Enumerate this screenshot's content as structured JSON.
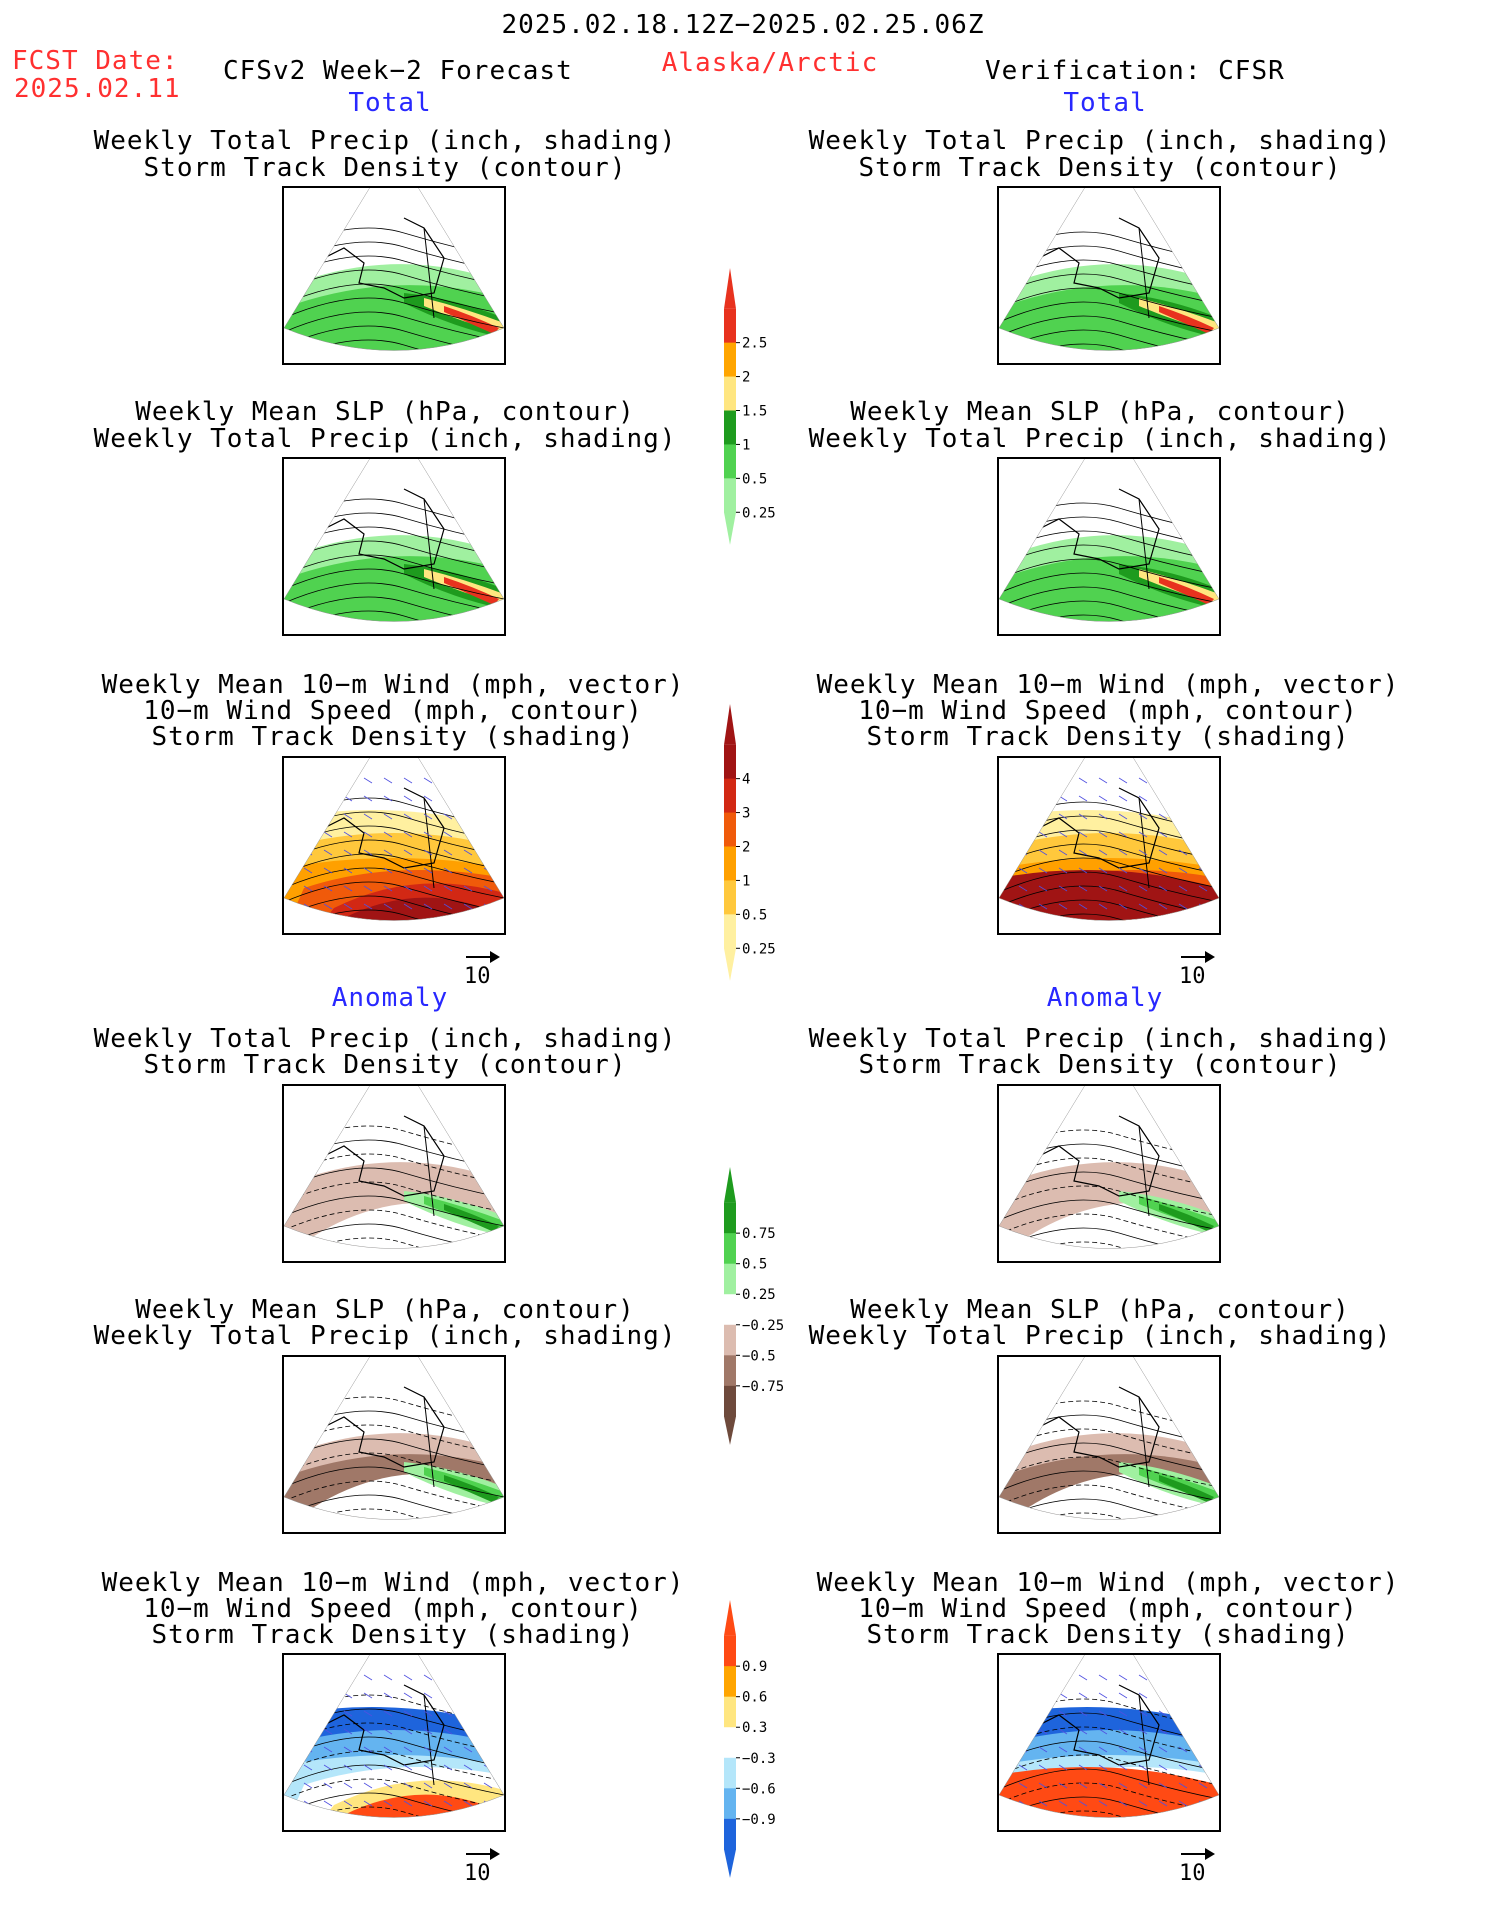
{
  "header": {
    "date_range": "2025.02.18.12Z−2025.02.25.06Z",
    "fcst_label": "FCST Date:",
    "fcst_date": "2025.02.11",
    "model": "CFSv2 Week−2 Forecast",
    "region": "Alaska/Arctic",
    "verification": "Verification: CFSR"
  },
  "sections": {
    "total": "Total",
    "anomaly": "Anomaly"
  },
  "panel_titles": {
    "precip_track": [
      "Weekly Total Precip (inch, shading)",
      "Storm Track Density (contour)"
    ],
    "slp_precip": [
      "Weekly Mean SLP (hPa, contour)",
      "Weekly Total Precip (inch, shading)"
    ],
    "wind_track": [
      "Weekly Mean 10−m Wind (mph, vector)",
      "10−m Wind Speed (mph, contour)",
      "Storm Track Density (shading)"
    ]
  },
  "vector_ref": "10",
  "colorbars": [
    {
      "name": "total-precip",
      "labels": [
        "2.5",
        "2",
        "1.5",
        "1",
        "0.5",
        "0.25"
      ],
      "colors": [
        "#e8321e",
        "#ffa500",
        "#ffe680",
        "#1e9b1e",
        "#50d250",
        "#a0f0a0"
      ]
    },
    {
      "name": "total-track-density",
      "labels": [
        "4",
        "3",
        "2",
        "1",
        "0.5",
        "0.25"
      ],
      "colors": [
        "#a01414",
        "#d22814",
        "#f05a0a",
        "#ffa000",
        "#ffc83c",
        "#fff0a0"
      ]
    },
    {
      "name": "anomaly-precip",
      "labels": [
        "0.75",
        "0.5",
        "0.25",
        "−0.25",
        "−0.5",
        "−0.75"
      ],
      "colors": [
        "#1e9b1e",
        "#50d250",
        "#a0f0a0",
        "#ffffff",
        "#dcbcb0",
        "#a07868",
        "#6e4a3c"
      ]
    },
    {
      "name": "anomaly-track-density",
      "labels": [
        "0.9",
        "0.6",
        "0.3",
        "−0.3",
        "−0.6",
        "−0.9"
      ],
      "colors": [
        "#ff4a14",
        "#ffa500",
        "#ffe680",
        "#ffffff",
        "#b4e6fa",
        "#64b4f0",
        "#1e64dc"
      ]
    }
  ]
}
